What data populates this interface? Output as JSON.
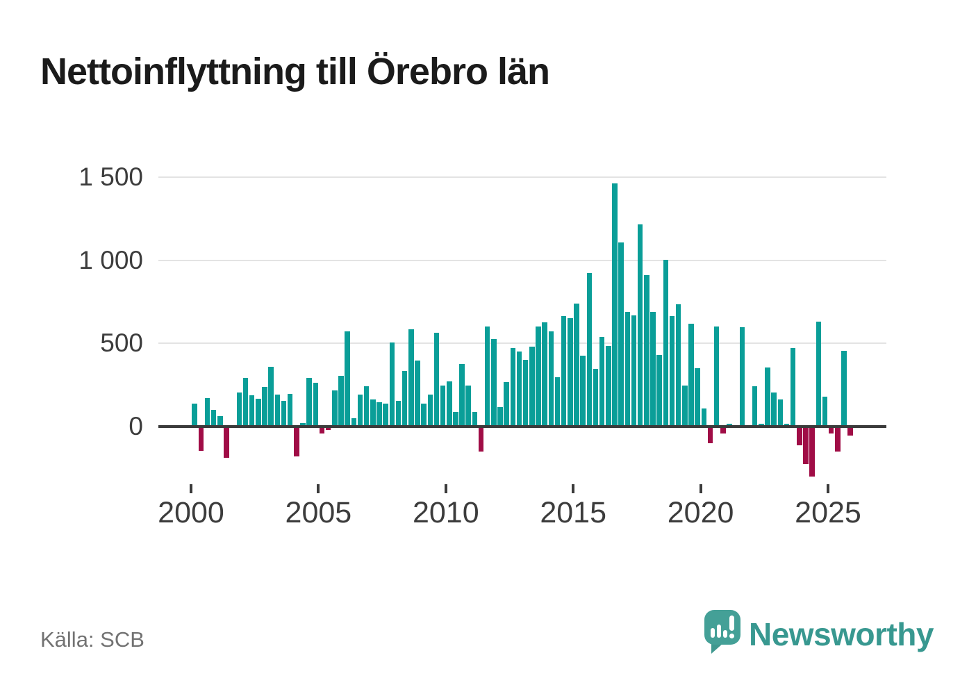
{
  "title": "Nettoinflyttning till Örebro län",
  "source": "Källa: SCB",
  "branding": {
    "logo_text": "Newsworthy",
    "logo_icon": "newsworthy-speech-bubble-bar-chart-icon"
  },
  "colors": {
    "positive_bar": "#0a9e98",
    "negative_bar": "#a00d46",
    "axis_line": "#3b3b3b",
    "gridline": "#e3e3e3",
    "axis_text": "#3c3c3c",
    "title_text": "#1b1b1b",
    "source_text": "#727272",
    "brand_teal": "#389890"
  },
  "chart_data": {
    "type": "bar",
    "title": "Nettoinflyttning till Örebro län",
    "xlabel": "",
    "ylabel": "",
    "grid": true,
    "legend": "none",
    "ylim": [
      -350,
      1550
    ],
    "y_ticks": [
      1500,
      1000,
      500,
      0
    ],
    "y_tick_labels": [
      "1 500",
      "1 000",
      "500",
      "0"
    ],
    "x_tick_years": [
      2000,
      2005,
      2010,
      2015,
      2020,
      2025
    ],
    "x_tick_labels": [
      "2000",
      "2005",
      "2010",
      "2015",
      "2020",
      "2025"
    ],
    "categories": [
      "2000 Q1",
      "2000 Q2",
      "2000 Q3",
      "2000 Q4",
      "2001 Q1",
      "2001 Q2",
      "2001 Q3",
      "2001 Q4",
      "2002 Q1",
      "2002 Q2",
      "2002 Q3",
      "2002 Q4",
      "2003 Q1",
      "2003 Q2",
      "2003 Q3",
      "2003 Q4",
      "2004 Q1",
      "2004 Q2",
      "2004 Q3",
      "2004 Q4",
      "2005 Q1",
      "2005 Q2",
      "2005 Q3",
      "2005 Q4",
      "2006 Q1",
      "2006 Q2",
      "2006 Q3",
      "2006 Q4",
      "2007 Q1",
      "2007 Q2",
      "2007 Q3",
      "2007 Q4",
      "2008 Q1",
      "2008 Q2",
      "2008 Q3",
      "2008 Q4",
      "2009 Q1",
      "2009 Q2",
      "2009 Q3",
      "2009 Q4",
      "2010 Q1",
      "2010 Q2",
      "2010 Q3",
      "2010 Q4",
      "2011 Q1",
      "2011 Q2",
      "2011 Q3",
      "2011 Q4",
      "2012 Q1",
      "2012 Q2",
      "2012 Q3",
      "2012 Q4",
      "2013 Q1",
      "2013 Q2",
      "2013 Q3",
      "2013 Q4",
      "2014 Q1",
      "2014 Q2",
      "2014 Q3",
      "2014 Q4",
      "2015 Q1",
      "2015 Q2",
      "2015 Q3",
      "2015 Q4",
      "2016 Q1",
      "2016 Q2",
      "2016 Q3",
      "2016 Q4",
      "2017 Q1",
      "2017 Q2",
      "2017 Q3",
      "2017 Q4",
      "2018 Q1",
      "2018 Q2",
      "2018 Q3",
      "2018 Q4",
      "2019 Q1",
      "2019 Q2",
      "2019 Q3",
      "2019 Q4",
      "2020 Q1",
      "2020 Q2",
      "2020 Q3",
      "2020 Q4",
      "2021 Q1",
      "2021 Q2",
      "2021 Q3",
      "2021 Q4",
      "2022 Q1",
      "2022 Q2",
      "2022 Q3",
      "2022 Q4",
      "2023 Q1",
      "2023 Q2",
      "2023 Q3",
      "2023 Q4",
      "2024 Q1",
      "2024 Q2",
      "2024 Q3",
      "2024 Q4",
      "2025 Q1",
      "2025 Q2",
      "2025 Q3",
      "2025 Q4"
    ],
    "values": [
      135,
      -145,
      170,
      100,
      60,
      -190,
      0,
      205,
      290,
      185,
      165,
      235,
      360,
      190,
      155,
      195,
      -180,
      20,
      290,
      260,
      -40,
      -20,
      215,
      305,
      570,
      50,
      190,
      240,
      160,
      145,
      135,
      505,
      155,
      335,
      585,
      395,
      135,
      190,
      565,
      245,
      270,
      85,
      375,
      245,
      85,
      -150,
      600,
      525,
      115,
      265,
      470,
      450,
      400,
      480,
      600,
      625,
      570,
      295,
      665,
      650,
      740,
      425,
      925,
      345,
      540,
      485,
      1465,
      1110,
      690,
      670,
      1215,
      910,
      690,
      430,
      1005,
      665,
      735,
      245,
      620,
      350,
      105,
      -100,
      600,
      -40,
      15,
      0,
      595,
      0,
      240,
      15,
      355,
      205,
      160,
      15,
      470,
      -115,
      -225,
      -300,
      630,
      180,
      -40,
      -150,
      455,
      -55
    ]
  }
}
